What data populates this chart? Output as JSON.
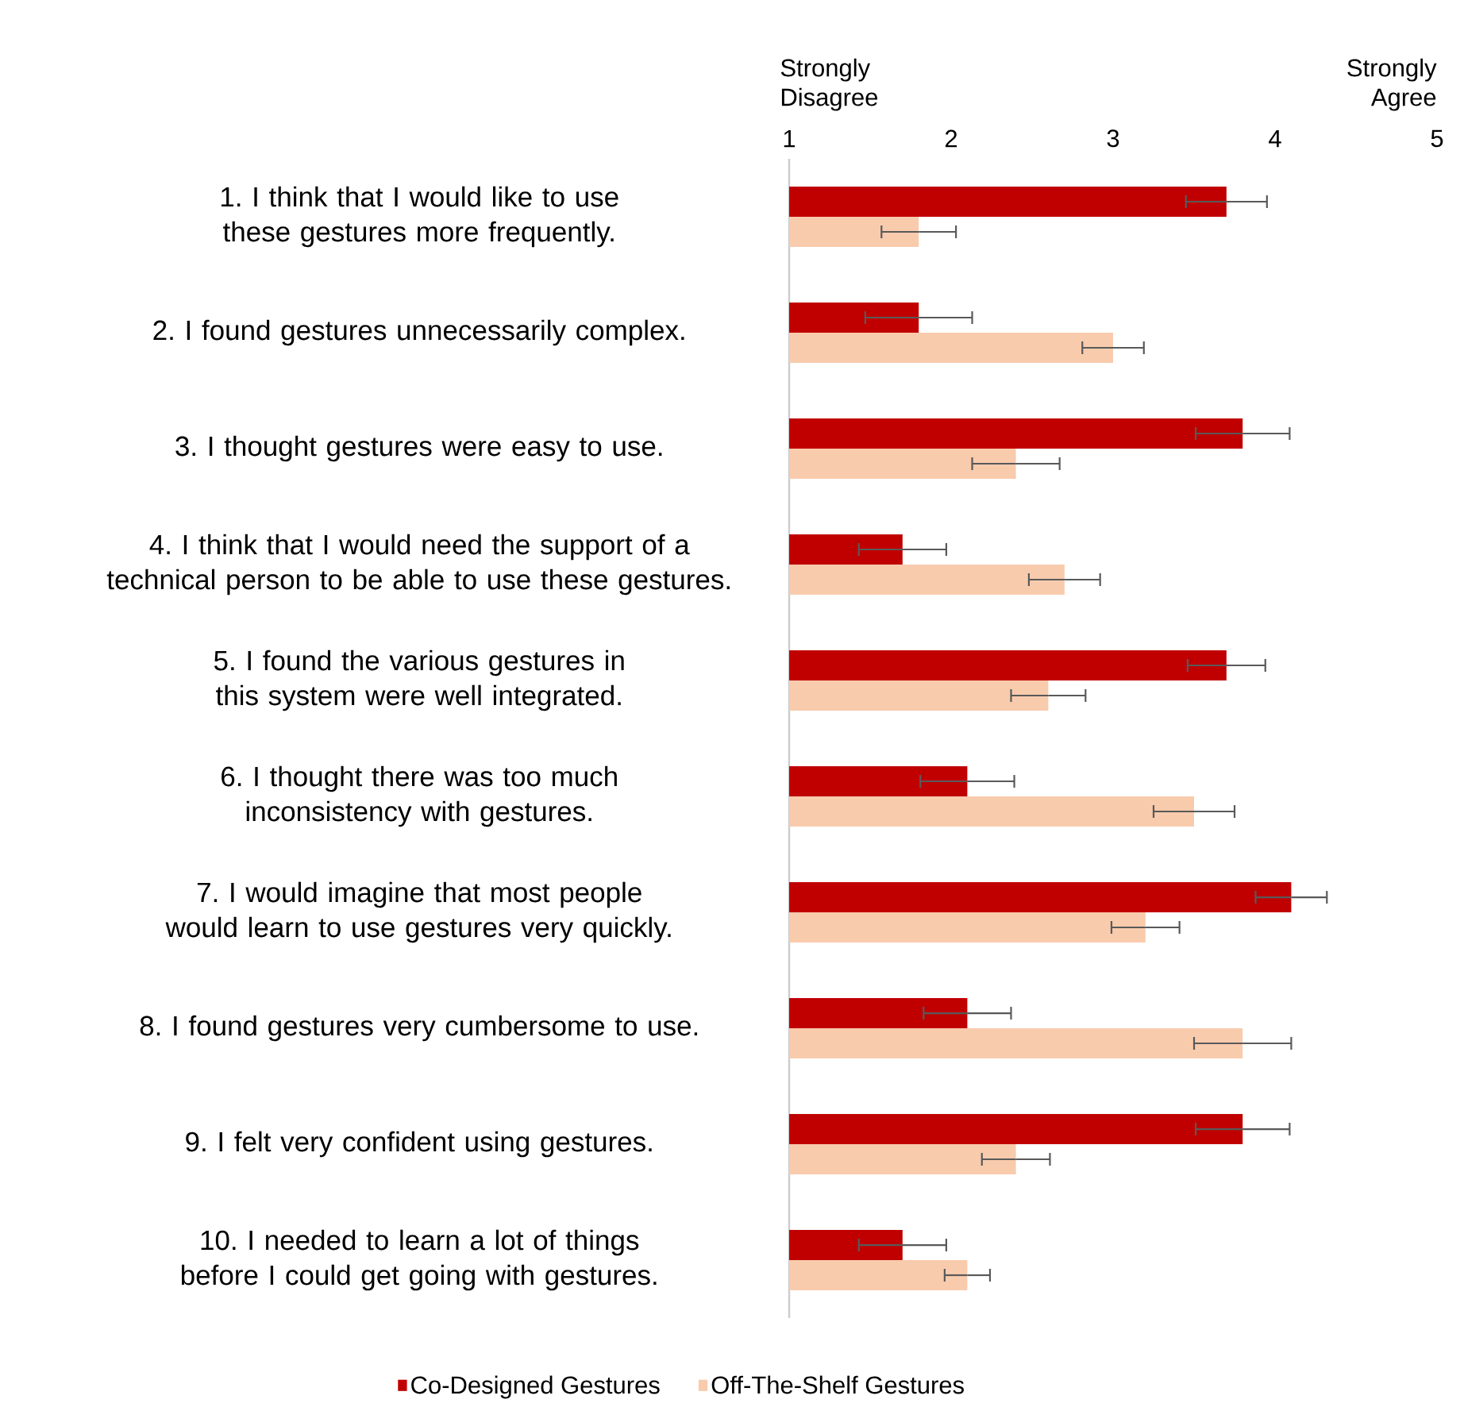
{
  "chart_data": {
    "type": "bar",
    "orientation": "horizontal",
    "categories": [
      "1. I think that I would like to use these gestures more frequently.",
      "2. I found gestures unnecessarily complex.",
      "3. I thought gestures were easy to use.",
      "4. I think that I would need the support of a technical person to be able to use these gestures.",
      "5. I found the various gestures in this system were well integrated.",
      "6. I thought there was too much inconsistency with gestures.",
      "7. I would imagine that most people would learn to use gestures very quickly.",
      "8. I found gestures very cumbersome to use.",
      "9. I felt very confident using gestures.",
      "10. I needed to learn a lot of things before I could get going with gestures."
    ],
    "series": [
      {
        "name": "Co-Designed Gestures",
        "color": "#c00000",
        "values": [
          3.7,
          1.8,
          3.8,
          1.7,
          3.7,
          2.1,
          4.1,
          2.1,
          3.8,
          1.7
        ],
        "errors": [
          0.25,
          0.33,
          0.29,
          0.27,
          0.24,
          0.29,
          0.22,
          0.27,
          0.29,
          0.27
        ]
      },
      {
        "name": "Off-The-Shelf Gestures",
        "color": "#f8cbad",
        "values": [
          1.8,
          3.0,
          2.4,
          2.7,
          2.6,
          3.5,
          3.2,
          3.8,
          2.4,
          2.1
        ],
        "errors": [
          0.23,
          0.19,
          0.27,
          0.22,
          0.23,
          0.25,
          0.21,
          0.3,
          0.21,
          0.14
        ]
      }
    ],
    "xlim": [
      1,
      5
    ],
    "xticks": [
      1,
      2,
      3,
      4,
      5
    ],
    "annotations": [
      "Strongly Disagree",
      "Strongly Agree"
    ],
    "legend": "bottom"
  }
}
